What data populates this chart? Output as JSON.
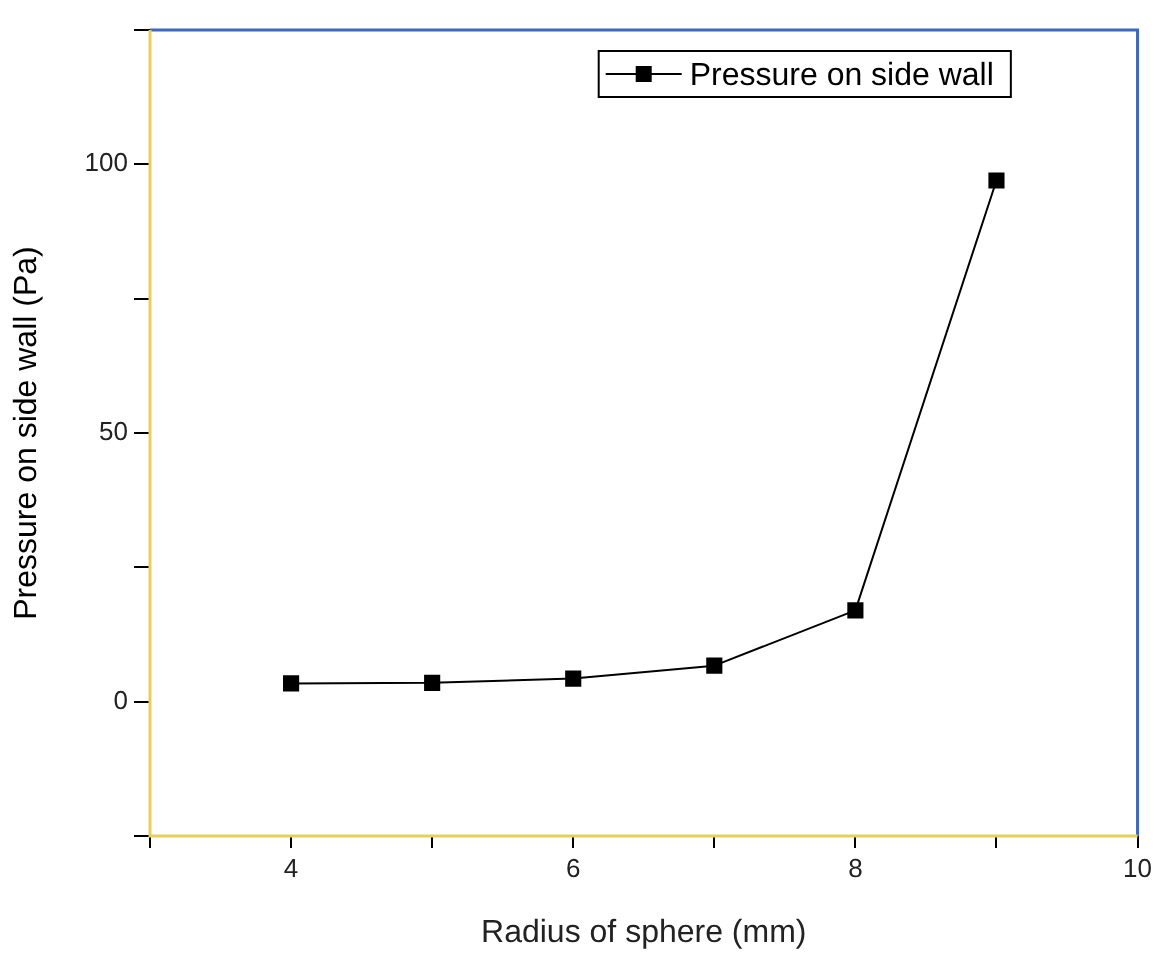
{
  "chart_data": {
    "type": "line",
    "xlabel": "Radius of sphere (mm)",
    "ylabel": "Pressure on side wall (Pa)",
    "x": [
      4,
      5,
      6,
      7,
      8,
      9
    ],
    "series": [
      {
        "name": "Pressure on side wall",
        "color": "#000000",
        "values": [
          3.4,
          3.5,
          4.3,
          6.7,
          17,
          97
        ]
      }
    ],
    "xlim": [
      3,
      10
    ],
    "xticks": [
      {
        "value": 3,
        "label": null
      },
      4,
      {
        "value": 5,
        "label": null
      },
      6,
      {
        "value": 7,
        "label": null
      },
      8,
      {
        "value": 9,
        "label": null
      },
      10
    ],
    "ylim": [
      -25,
      125
    ],
    "yticks": [
      {
        "value": -25,
        "label": null
      },
      0,
      {
        "value": 25,
        "label": null
      },
      50,
      {
        "value": 75,
        "label": null
      },
      100,
      {
        "value": 125,
        "label": null
      }
    ],
    "grid": false,
    "legend": "top",
    "marker": "square",
    "line_style": "solid"
  }
}
